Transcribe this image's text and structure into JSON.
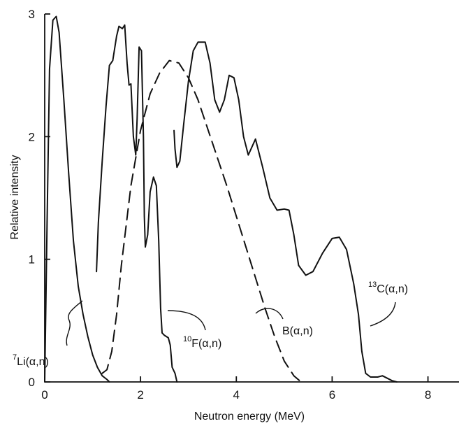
{
  "chart_data": {
    "type": "line",
    "title": "",
    "xlabel": "Neutron energy (MeV)",
    "ylabel": "Relative intensity",
    "xlim": [
      0,
      8.4
    ],
    "ylim": [
      0,
      3
    ],
    "xticks": [
      0,
      2,
      4,
      6,
      8
    ],
    "xtick_labels": [
      "0",
      "2",
      "4",
      "6",
      "8"
    ],
    "yticks": [
      0,
      1,
      2,
      3
    ],
    "ytick_labels": [
      "0",
      "1",
      "2",
      "3"
    ],
    "grid": false,
    "legend": "none (series labeled directly on curves)",
    "series": [
      {
        "name": "Li(α,n)",
        "label_sup": "7",
        "label_base": "Li(α,n)",
        "style": "solid",
        "points": [
          [
            0.0,
            0.0
          ],
          [
            0.05,
            1.3
          ],
          [
            0.1,
            2.55
          ],
          [
            0.17,
            2.95
          ],
          [
            0.24,
            2.98
          ],
          [
            0.3,
            2.85
          ],
          [
            0.4,
            2.3
          ],
          [
            0.5,
            1.7
          ],
          [
            0.6,
            1.15
          ],
          [
            0.7,
            0.78
          ],
          [
            0.8,
            0.55
          ],
          [
            0.9,
            0.37
          ],
          [
            1.0,
            0.22
          ],
          [
            1.1,
            0.12
          ],
          [
            1.2,
            0.05
          ],
          [
            1.3,
            0.02
          ],
          [
            1.35,
            0.0
          ]
        ]
      },
      {
        "name": "F(α,n)",
        "label_sup": "10",
        "label_base": "F(α,n)",
        "style": "solid",
        "points": [
          [
            1.08,
            0.9
          ],
          [
            1.12,
            1.3
          ],
          [
            1.2,
            1.8
          ],
          [
            1.28,
            2.25
          ],
          [
            1.35,
            2.58
          ],
          [
            1.42,
            2.62
          ],
          [
            1.5,
            2.82
          ],
          [
            1.55,
            2.9
          ],
          [
            1.62,
            2.88
          ],
          [
            1.67,
            2.91
          ],
          [
            1.72,
            2.6
          ],
          [
            1.76,
            2.42
          ],
          [
            1.8,
            2.43
          ],
          [
            1.85,
            2.0
          ],
          [
            1.9,
            1.85
          ],
          [
            1.93,
            2.15
          ],
          [
            1.97,
            2.73
          ],
          [
            2.02,
            2.7
          ],
          [
            2.06,
            2.0
          ],
          [
            2.08,
            1.35
          ],
          [
            2.1,
            1.1
          ],
          [
            2.15,
            1.2
          ],
          [
            2.2,
            1.55
          ],
          [
            2.27,
            1.67
          ],
          [
            2.33,
            1.6
          ],
          [
            2.38,
            1.15
          ],
          [
            2.42,
            0.6
          ],
          [
            2.45,
            0.4
          ],
          [
            2.5,
            0.38
          ],
          [
            2.58,
            0.36
          ],
          [
            2.62,
            0.3
          ],
          [
            2.66,
            0.12
          ],
          [
            2.72,
            0.07
          ],
          [
            2.76,
            0.0
          ]
        ]
      },
      {
        "name": "B(α,n)",
        "label_sup": "",
        "label_base": "B(α,n)",
        "style": "dashed",
        "points": [
          [
            1.2,
            0.07
          ],
          [
            1.3,
            0.1
          ],
          [
            1.4,
            0.25
          ],
          [
            1.5,
            0.55
          ],
          [
            1.6,
            0.95
          ],
          [
            1.8,
            1.6
          ],
          [
            2.0,
            2.05
          ],
          [
            2.2,
            2.35
          ],
          [
            2.4,
            2.52
          ],
          [
            2.6,
            2.62
          ],
          [
            2.8,
            2.6
          ],
          [
            3.0,
            2.48
          ],
          [
            3.2,
            2.3
          ],
          [
            3.5,
            1.95
          ],
          [
            3.8,
            1.6
          ],
          [
            4.0,
            1.35
          ],
          [
            4.2,
            1.1
          ],
          [
            4.4,
            0.85
          ],
          [
            4.6,
            0.6
          ],
          [
            4.8,
            0.37
          ],
          [
            5.0,
            0.17
          ],
          [
            5.2,
            0.05
          ],
          [
            5.35,
            0.0
          ]
        ]
      },
      {
        "name": "C(α,n)",
        "label_sup": "13",
        "label_base": "C(α,n)",
        "style": "solid",
        "points": [
          [
            2.7,
            2.05
          ],
          [
            2.72,
            1.9
          ],
          [
            2.76,
            1.75
          ],
          [
            2.82,
            1.8
          ],
          [
            2.9,
            2.1
          ],
          [
            3.0,
            2.45
          ],
          [
            3.1,
            2.7
          ],
          [
            3.2,
            2.77
          ],
          [
            3.35,
            2.77
          ],
          [
            3.45,
            2.6
          ],
          [
            3.55,
            2.3
          ],
          [
            3.65,
            2.2
          ],
          [
            3.75,
            2.3
          ],
          [
            3.85,
            2.5
          ],
          [
            3.95,
            2.48
          ],
          [
            4.05,
            2.3
          ],
          [
            4.15,
            2.0
          ],
          [
            4.25,
            1.85
          ],
          [
            4.4,
            1.98
          ],
          [
            4.55,
            1.75
          ],
          [
            4.7,
            1.5
          ],
          [
            4.85,
            1.4
          ],
          [
            5.0,
            1.41
          ],
          [
            5.1,
            1.4
          ],
          [
            5.2,
            1.2
          ],
          [
            5.3,
            0.95
          ],
          [
            5.45,
            0.87
          ],
          [
            5.6,
            0.9
          ],
          [
            5.8,
            1.05
          ],
          [
            6.0,
            1.17
          ],
          [
            6.15,
            1.18
          ],
          [
            6.3,
            1.08
          ],
          [
            6.45,
            0.8
          ],
          [
            6.55,
            0.55
          ],
          [
            6.62,
            0.25
          ],
          [
            6.7,
            0.07
          ],
          [
            6.8,
            0.04
          ],
          [
            6.95,
            0.04
          ],
          [
            7.05,
            0.05
          ],
          [
            7.15,
            0.03
          ],
          [
            7.25,
            0.01
          ],
          [
            7.35,
            0.0
          ]
        ]
      }
    ]
  }
}
